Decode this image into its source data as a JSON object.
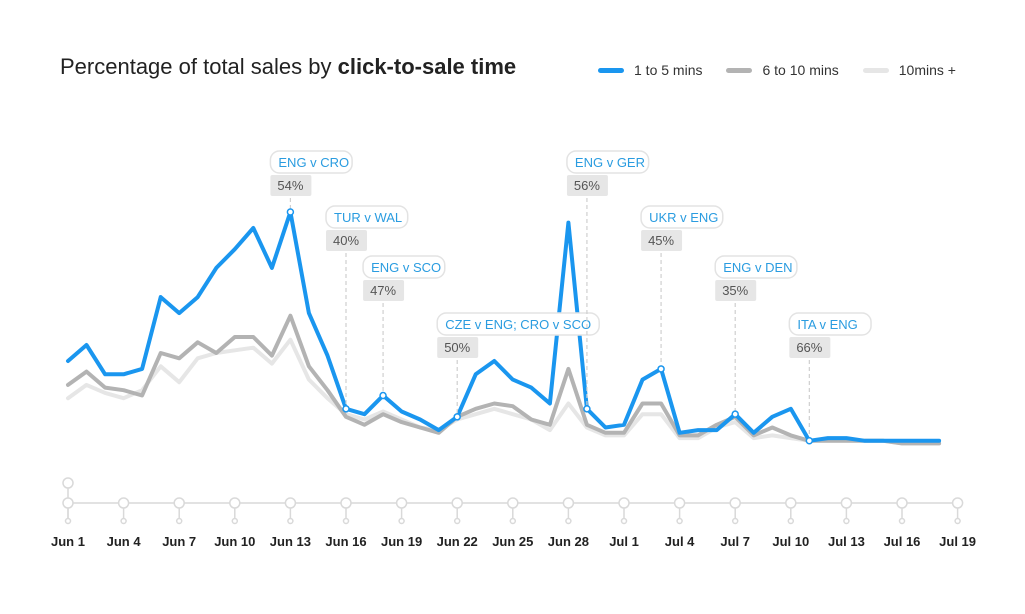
{
  "chart_data": {
    "type": "line",
    "title_regular": "Percentage of total sales by ",
    "title_bold": "click-to-sale time",
    "xlabel": "",
    "ylabel": "",
    "ylim": [
      0,
      100
    ],
    "grid": false,
    "legend_position": "top-right",
    "x": [
      "Jun 1",
      "Jun 2",
      "Jun 3",
      "Jun 4",
      "Jun 5",
      "Jun 6",
      "Jun 7",
      "Jun 8",
      "Jun 9",
      "Jun 10",
      "Jun 11",
      "Jun 12",
      "Jun 13",
      "Jun 14",
      "Jun 15",
      "Jun 16",
      "Jun 17",
      "Jun 18",
      "Jun 19",
      "Jun 20",
      "Jun 21",
      "Jun 22",
      "Jun 23",
      "Jun 24",
      "Jun 25",
      "Jun 26",
      "Jun 27",
      "Jun 28",
      "Jun 29",
      "Jun 30",
      "Jul 1",
      "Jul 2",
      "Jul 3",
      "Jul 4",
      "Jul 5",
      "Jul 6",
      "Jul 7",
      "Jul 8",
      "Jul 9",
      "Jul 10",
      "Jul 11",
      "Jul 12",
      "Jul 13",
      "Jul 14",
      "Jul 15",
      "Jul 16",
      "Jul 17",
      "Jul 18"
    ],
    "x_tick_labels": [
      "Jun 1",
      "Jun 4",
      "Jun 7",
      "Jun 10",
      "Jun 13",
      "Jun 16",
      "Jun 19",
      "Jun 22",
      "Jun 25",
      "Jun 28",
      "Jul 1",
      "Jul 4",
      "Jul 7",
      "Jul 10",
      "Jul 13",
      "Jul 16",
      "Jul 19"
    ],
    "series": [
      {
        "name": "1 to 5 mins",
        "color": "#1a96ef",
        "values": [
          44,
          50,
          39,
          39,
          41,
          68,
          62,
          68,
          79,
          86,
          94,
          79,
          100,
          62,
          46,
          26,
          24,
          31,
          25,
          22,
          18,
          23,
          39,
          44,
          37,
          34,
          28,
          96,
          26,
          19,
          20,
          37,
          41,
          17,
          18,
          18,
          24,
          17,
          23,
          26,
          14,
          15,
          15,
          14,
          14,
          14,
          14,
          14
        ]
      },
      {
        "name": "6 to 10 mins",
        "color": "#b3b3b3",
        "values": [
          35,
          40,
          34,
          33,
          31,
          47,
          45,
          51,
          47,
          53,
          53,
          46,
          61,
          42,
          33,
          23,
          20,
          24,
          21,
          19,
          17,
          23,
          26,
          28,
          27,
          22,
          20,
          41,
          20,
          17,
          17,
          28,
          28,
          16,
          16,
          20,
          23,
          16,
          19,
          16,
          14,
          14,
          14,
          14,
          14,
          13,
          13,
          13
        ]
      },
      {
        "name": "10mins +",
        "color": "#e6e6e6",
        "values": [
          30,
          35,
          32,
          30,
          33,
          42,
          36,
          45,
          47,
          48,
          49,
          43,
          52,
          37,
          30,
          24,
          22,
          25,
          22,
          19,
          18,
          22,
          24,
          26,
          24,
          22,
          18,
          28,
          19,
          16,
          16,
          24,
          24,
          15,
          15,
          19,
          21,
          15,
          16,
          15,
          14,
          14,
          14,
          14,
          14,
          13,
          13,
          13
        ]
      }
    ],
    "annotations": [
      {
        "label": "ENG v CRO",
        "value": "54%",
        "date": "Jun 13"
      },
      {
        "label": "TUR v WAL",
        "value": "40%",
        "date": "Jun 16"
      },
      {
        "label": "ENG v SCO",
        "value": "47%",
        "date": "Jun 18"
      },
      {
        "label": "CZE v ENG; CRO v SCO",
        "value": "50%",
        "date": "Jun 22"
      },
      {
        "label": "ENG v GER",
        "value": "56%",
        "date": "Jun 29"
      },
      {
        "label": "UKR v ENG",
        "value": "45%",
        "date": "Jul 3"
      },
      {
        "label": "ENG v DEN",
        "value": "35%",
        "date": "Jul 7"
      },
      {
        "label": "ITA v ENG",
        "value": "66%",
        "date": "Jul 11"
      }
    ]
  }
}
